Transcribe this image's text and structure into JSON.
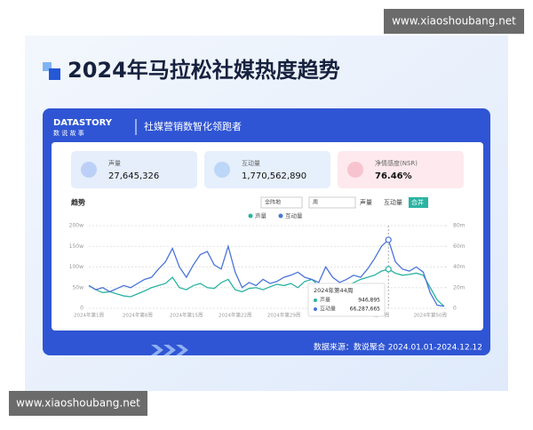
{
  "watermarks": [
    "www.xiaoshoubang.net",
    "www.xiaoshoubang.net"
  ],
  "header": {
    "title": "2024年马拉松社媒热度趋势"
  },
  "brand": {
    "logo": "DATASTORY",
    "logo_sub": "数 说 故 事",
    "slogan": "社媒营销数智化领跑者"
  },
  "stats": [
    {
      "label": "声量",
      "value": "27,645,326"
    },
    {
      "label": "互动量",
      "value": "1,770,562,890"
    },
    {
      "label": "净情感度(NSR)",
      "value": "76.46%"
    }
  ],
  "toolbar": {
    "title": "趋势",
    "scope": "全阵地",
    "period": "周",
    "tabs": [
      "声量",
      "互动量",
      "合并"
    ]
  },
  "tooltip": {
    "title": "2024年第44周",
    "values": [
      "946,895",
      "66,287,665"
    ]
  },
  "footer": "数据来源：数说聚合 2024.01.01-2024.12.12",
  "chart_data": {
    "type": "line",
    "grid": true,
    "legend": "top",
    "categories": [
      "2024年第1周",
      null,
      null,
      null,
      null,
      null,
      null,
      "2024年第8周",
      null,
      null,
      null,
      null,
      null,
      null,
      "2024年第15周",
      null,
      null,
      null,
      null,
      null,
      null,
      "2024年第22周",
      null,
      null,
      null,
      null,
      null,
      null,
      "2024年第29周",
      null,
      null,
      null,
      null,
      null,
      null,
      null,
      null,
      null,
      null,
      null,
      null,
      null,
      "第43周",
      null,
      null,
      null,
      null,
      null,
      null,
      "2024年第50周",
      null,
      null
    ],
    "ylim": [
      0,
      2000000
    ],
    "yticks": [
      0,
      {
        "value": 500000,
        "label": "50w"
      },
      {
        "value": 1000000,
        "label": "100w"
      },
      {
        "value": 1500000,
        "label": "150w"
      },
      {
        "value": 2000000,
        "label": "200w"
      }
    ],
    "y2lim": [
      0,
      80000000
    ],
    "y2ticks": [
      0,
      {
        "value": 20000000,
        "label": "20m"
      },
      {
        "value": 40000000,
        "label": "40m"
      },
      {
        "value": 60000000,
        "label": "60m"
      },
      {
        "value": 80000000,
        "label": "80m"
      }
    ],
    "series": [
      {
        "name": "声量",
        "color": "#2bb3a3",
        "values": [
          550000,
          450000,
          380000,
          400000,
          350000,
          300000,
          280000,
          350000,
          420000,
          500000,
          550000,
          600000,
          750000,
          500000,
          450000,
          550000,
          600000,
          500000,
          480000,
          620000,
          700000,
          450000,
          400000,
          480000,
          500000,
          450000,
          520000,
          580000,
          550000,
          600000,
          500000,
          650000,
          700000,
          550000,
          450000,
          500000,
          600000,
          550000,
          620000,
          700000,
          750000,
          800000,
          900000,
          946895,
          850000,
          800000,
          820000,
          850000,
          800000,
          500000,
          200000,
          50000
        ]
      },
      {
        "name": "互动量",
        "color": "#4a74d9",
        "axis": "y2",
        "values": [
          22000000,
          18000000,
          20000000,
          16000000,
          19000000,
          22000000,
          20000000,
          24000000,
          28000000,
          30000000,
          38000000,
          45000000,
          58000000,
          40000000,
          30000000,
          42000000,
          52000000,
          55000000,
          42000000,
          38000000,
          60000000,
          35000000,
          20000000,
          25000000,
          22000000,
          28000000,
          24000000,
          26000000,
          30000000,
          32000000,
          35000000,
          30000000,
          28000000,
          25000000,
          40000000,
          30000000,
          25000000,
          28000000,
          32000000,
          30000000,
          38000000,
          48000000,
          60000000,
          66287665,
          45000000,
          38000000,
          36000000,
          40000000,
          35000000,
          15000000,
          3000000,
          2000000
        ]
      }
    ]
  }
}
